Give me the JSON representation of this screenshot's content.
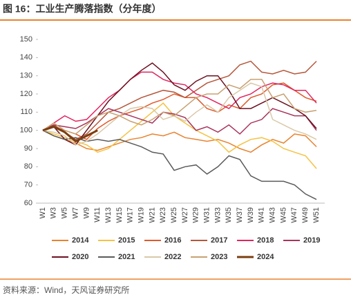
{
  "chart_data": {
    "type": "line",
    "title": "图 16：工业生产腾落指数（分年度）",
    "source": "资料来源：Wind，天风证券研究所",
    "categories": [
      "W1",
      "W3",
      "W5",
      "W7",
      "W9",
      "W11",
      "W13",
      "W15",
      "W17",
      "W19",
      "W21",
      "W23",
      "W25",
      "W27",
      "W29",
      "W31",
      "W33",
      "W35",
      "W37",
      "W39",
      "W41",
      "W43",
      "W45",
      "W47",
      "W49",
      "W51"
    ],
    "ylim": [
      60,
      150
    ],
    "yticks": [
      60,
      70,
      80,
      90,
      100,
      110,
      120,
      130,
      140,
      150
    ],
    "series": [
      {
        "name": "2014",
        "color": "#e8822e",
        "values": [
          100,
          97,
          95,
          93,
          90,
          89,
          91,
          93,
          95,
          96,
          98,
          97,
          99,
          96,
          95,
          94,
          95,
          93,
          90,
          88,
          92,
          95,
          93,
          98,
          97,
          91
        ]
      },
      {
        "name": "2015",
        "color": "#f5c242",
        "values": [
          100,
          98,
          96,
          94,
          92,
          88,
          90,
          95,
          100,
          105,
          110,
          115,
          108,
          104,
          100,
          97,
          94,
          88,
          92,
          95,
          96,
          94,
          90,
          88,
          86,
          79
        ]
      },
      {
        "name": "2016",
        "color": "#e0582a",
        "values": [
          100,
          102,
          100,
          98,
          95,
          101,
          105,
          108,
          110,
          112,
          115,
          117,
          120,
          118,
          118,
          112,
          110,
          114,
          112,
          118,
          120,
          125,
          126,
          122,
          118,
          116
        ]
      },
      {
        "name": "2017",
        "color": "#b5563a",
        "values": [
          100,
          103,
          99,
          95,
          98,
          104,
          110,
          112,
          115,
          118,
          120,
          122,
          121,
          118,
          122,
          126,
          128,
          130,
          136,
          138,
          132,
          131,
          133,
          131,
          132,
          138
        ]
      },
      {
        "name": "2018",
        "color": "#e0245e",
        "values": [
          100,
          104,
          108,
          105,
          106,
          112,
          118,
          122,
          128,
          132,
          132,
          128,
          126,
          125,
          120,
          118,
          115,
          112,
          118,
          120,
          124,
          126,
          125,
          122,
          122,
          115
        ]
      },
      {
        "name": "2019",
        "color": "#a8325a",
        "values": [
          100,
          103,
          102,
          101,
          104,
          108,
          112,
          110,
          108,
          106,
          104,
          110,
          109,
          107,
          100,
          102,
          99,
          103,
          98,
          104,
          106,
          112,
          110,
          108,
          108,
          100
        ]
      },
      {
        "name": "2020",
        "color": "#6b1020",
        "values": [
          100,
          102,
          95,
          92,
          100,
          108,
          116,
          122,
          128,
          133,
          137,
          132,
          125,
          122,
          127,
          130,
          130,
          122,
          112,
          112,
          115,
          118,
          115,
          112,
          108,
          101
        ]
      },
      {
        "name": "2021",
        "color": "#5a5a5a",
        "values": [
          100,
          97,
          95,
          96,
          94,
          95,
          94,
          95,
          93,
          91,
          88,
          87,
          78,
          80,
          81,
          76,
          80,
          86,
          84,
          75,
          72,
          72,
          72,
          70,
          65,
          62
        ]
      },
      {
        "name": "2022",
        "color": "#d9c8a8",
        "values": [
          100,
          99,
          97,
          92,
          94,
          98,
          103,
          108,
          112,
          113,
          112,
          106,
          108,
          105,
          110,
          114,
          110,
          118,
          122,
          126,
          124,
          106,
          103,
          100,
          98,
          95
        ]
      },
      {
        "name": "2023",
        "color": "#c8a070",
        "values": [
          100,
          104,
          100,
          98,
          103,
          108,
          110,
          108,
          105,
          103,
          106,
          110,
          108,
          113,
          118,
          120,
          120,
          125,
          123,
          128,
          128,
          118,
          120,
          112,
          110,
          111
        ]
      },
      {
        "name": "2024",
        "color": "#7a3e10",
        "line_width": 3,
        "values": [
          100,
          102,
          99,
          94,
          97,
          100,
          null,
          null,
          null,
          null,
          null,
          null,
          null,
          null,
          null,
          null,
          null,
          null,
          null,
          null,
          null,
          null,
          null,
          null,
          null,
          null
        ]
      }
    ]
  }
}
